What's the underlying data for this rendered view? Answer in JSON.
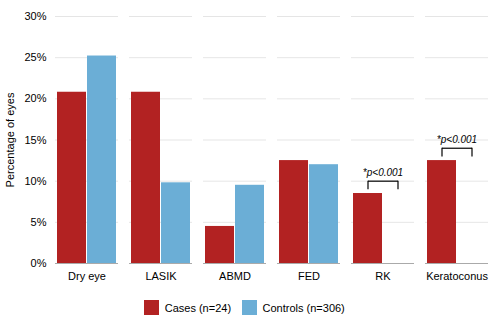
{
  "chart_data": {
    "type": "bar",
    "categories": [
      "Dry eye",
      "LASIK",
      "ABMD",
      "FED",
      "RK",
      "Keratoconus"
    ],
    "series": [
      {
        "name": "Cases (n=24)",
        "color": "#B22222",
        "values": [
          20.8,
          20.8,
          4.5,
          12.5,
          8.5,
          12.5
        ]
      },
      {
        "name": "Controls (n=306)",
        "color": "#6BAED6",
        "values": [
          25.2,
          9.8,
          9.5,
          12.0,
          0.0,
          0.0
        ]
      }
    ],
    "ylabel": "Percentage of eyes",
    "ylim": [
      0,
      30
    ],
    "yticks": [
      {
        "value": 0,
        "label": "0%"
      },
      {
        "value": 5,
        "label": "5%"
      },
      {
        "value": 10,
        "label": "10%"
      },
      {
        "value": 15,
        "label": "15%"
      },
      {
        "value": 20,
        "label": "20%"
      },
      {
        "value": 25,
        "label": "25%"
      },
      {
        "value": 30,
        "label": "30%"
      }
    ],
    "grid": true,
    "legend": "bottom",
    "annotations": [
      {
        "category": "RK",
        "text": "*p<0.001"
      },
      {
        "category": "Keratoconus",
        "text": "*p<0.001"
      }
    ]
  }
}
